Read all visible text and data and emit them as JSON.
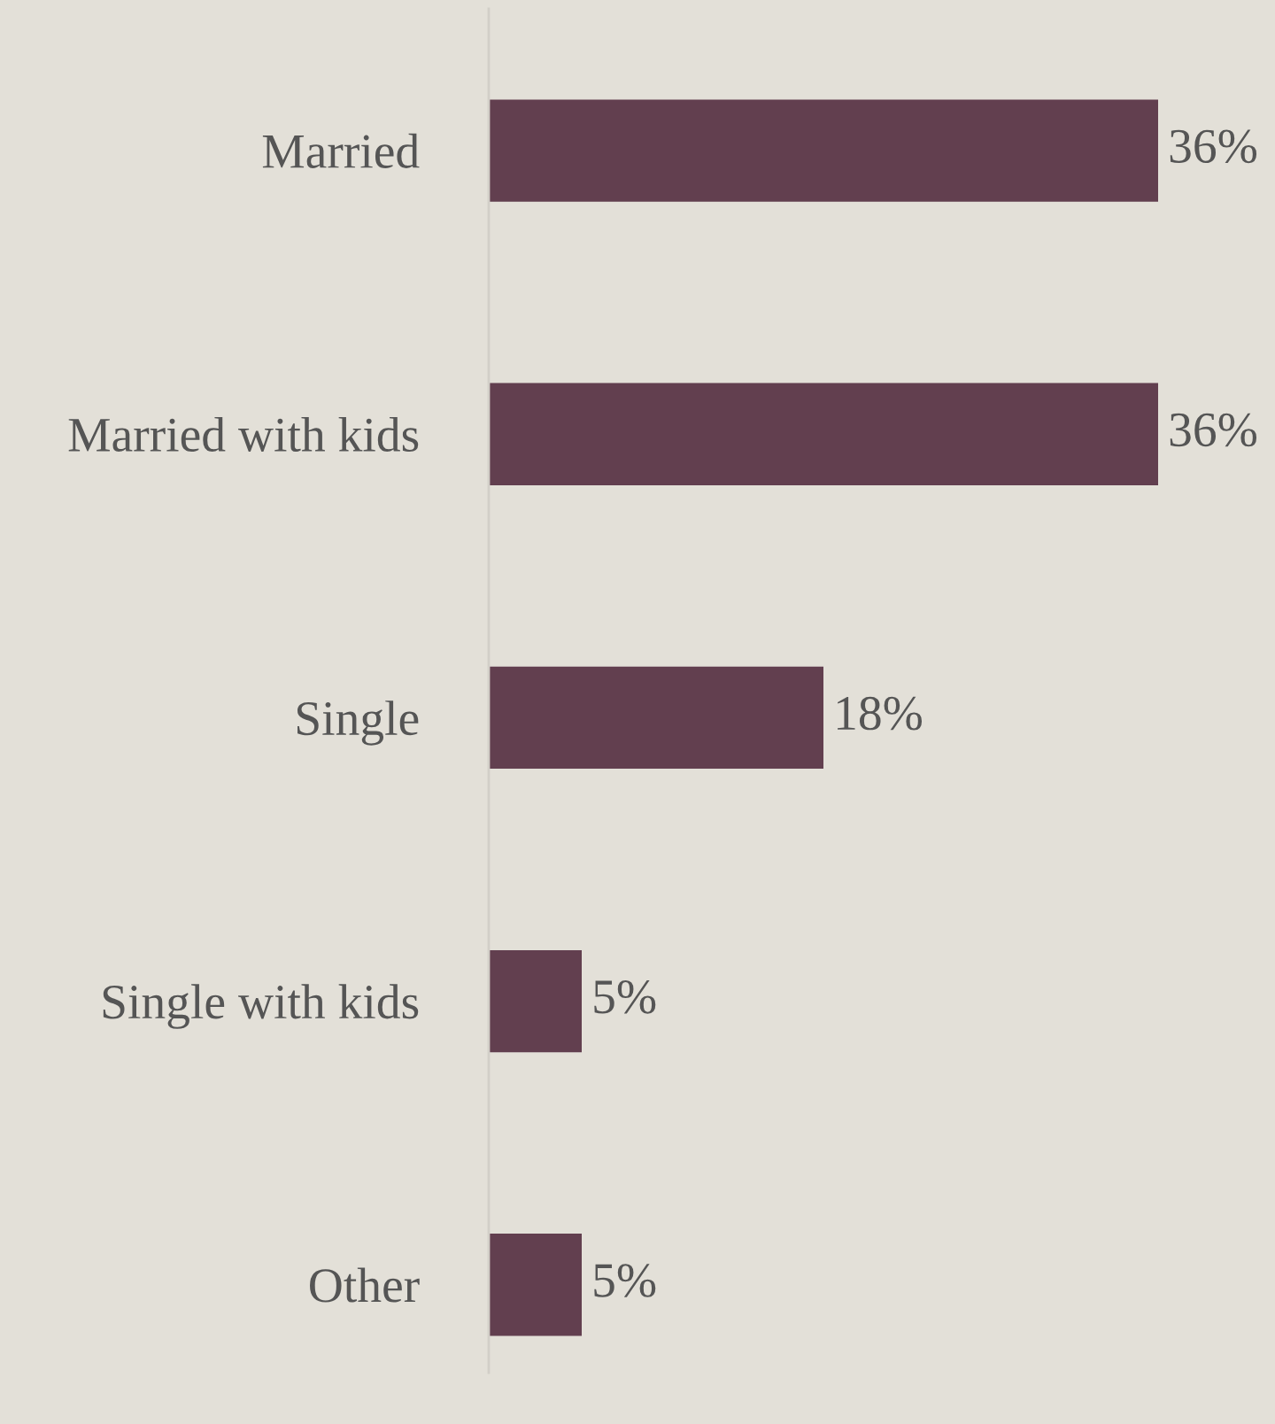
{
  "chart_data": {
    "type": "bar",
    "orientation": "horizontal",
    "categories": [
      "Married",
      "Married with kids",
      "Single",
      "Single with kids",
      "Other"
    ],
    "values": [
      36,
      36,
      18,
      5,
      5
    ],
    "value_labels": [
      "36%",
      "36%",
      "18%",
      "5%",
      "5%"
    ],
    "color": "#623f4f",
    "grid": false
  }
}
